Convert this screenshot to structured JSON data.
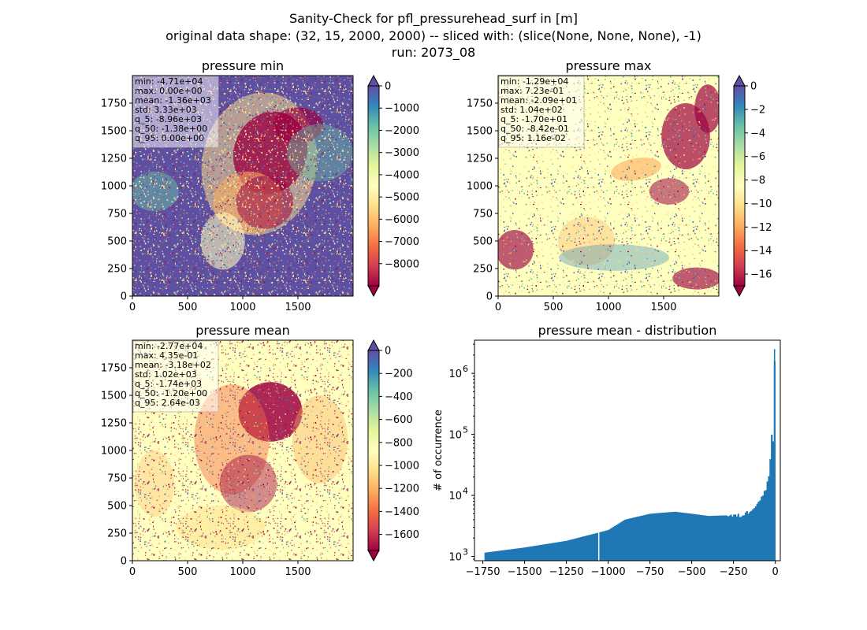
{
  "figure": {
    "title_lines": [
      "Sanity-Check for pfl_pressurehead_surf in [m]",
      "original data shape: (32, 15, 2000, 2000) -- sliced with: (slice(None, None, None), -1)",
      "run: 2073_08"
    ]
  },
  "colors": {
    "spectral": [
      "#9e0142",
      "#d53e4f",
      "#f46d43",
      "#fdae61",
      "#fee08b",
      "#ffffbf",
      "#e6f598",
      "#abdda4",
      "#66c2a5",
      "#3288bd",
      "#5e4fa2"
    ],
    "hist_bar": "#1f77b4",
    "map_background_min": "#5e4fa2",
    "map_background_max": "#ffffbf",
    "map_background_mean": "#ffffbf"
  },
  "chart_data": [
    {
      "type": "heatmap",
      "id": "min",
      "title": "pressure min",
      "xlim": [
        0,
        2000
      ],
      "ylim": [
        0,
        2000
      ],
      "xticks": [
        0,
        500,
        1000,
        1500
      ],
      "yticks": [
        0,
        250,
        500,
        750,
        1000,
        1250,
        1500,
        1750
      ],
      "colorbar": {
        "vmin": -9000,
        "vmax": 0,
        "ticks": [
          0,
          -1000,
          -2000,
          -3000,
          -4000,
          -5000,
          -6000,
          -7000,
          -8000
        ],
        "extend": "both"
      },
      "stats": [
        "min: -4.71e+04",
        "max: 0.00e+00",
        "mean: -1.36e+03",
        "std: 3.33e+03",
        "q_5: -8.96e+03",
        "q_50: -1.38e+00",
        "q_95: 0.00e+00"
      ]
    },
    {
      "type": "heatmap",
      "id": "max",
      "title": "pressure max",
      "xlim": [
        0,
        2000
      ],
      "ylim": [
        0,
        2000
      ],
      "xticks": [
        0,
        500,
        1000,
        1500
      ],
      "yticks": [
        0,
        250,
        500,
        750,
        1000,
        1250,
        1500,
        1750
      ],
      "colorbar": {
        "vmin": -17,
        "vmax": 0,
        "ticks": [
          0,
          -2,
          -4,
          -6,
          -8,
          -10,
          -12,
          -14,
          -16
        ],
        "extend": "both"
      },
      "stats": [
        "min: -1.29e+04",
        "max: 7.23e-01",
        "mean: -2.09e+01",
        "std: 1.04e+02",
        "q_5: -1.70e+01",
        "q_50: -8.42e-01",
        "q_95: 1.16e-02"
      ]
    },
    {
      "type": "heatmap",
      "id": "mean",
      "title": "pressure mean",
      "xlim": [
        0,
        2000
      ],
      "ylim": [
        0,
        2000
      ],
      "xticks": [
        0,
        500,
        1000,
        1500
      ],
      "yticks": [
        0,
        250,
        500,
        750,
        1000,
        1250,
        1500,
        1750
      ],
      "colorbar": {
        "vmin": -1740,
        "vmax": 0,
        "ticks": [
          0,
          -200,
          -400,
          -600,
          -800,
          -1000,
          -1200,
          -1400,
          -1600
        ],
        "extend": "both"
      },
      "stats": [
        "min: -2.77e+04",
        "max: 4.35e-01",
        "mean: -3.18e+02",
        "std: 1.02e+03",
        "q_5: -1.74e+03",
        "q_50: -1.20e+00",
        "q_95: 2.64e-03"
      ]
    },
    {
      "type": "bar",
      "id": "hist",
      "title": "pressure mean - distribution",
      "ylabel": "# of occurrence",
      "xlim": [
        -1800,
        30
      ],
      "ylim": [
        850,
        3500000
      ],
      "yscale": "log",
      "xticks": [
        -1750,
        -1500,
        -1250,
        -1000,
        -750,
        -500,
        -250,
        0
      ],
      "xticklabels": [
        "−1750",
        "−1500",
        "−1250",
        "−1000",
        "−750",
        "−500",
        "−250",
        "0"
      ],
      "yticks": [
        1000,
        10000,
        100000,
        1000000
      ],
      "yticklabels_base": [
        "10",
        "10",
        "10",
        "10"
      ],
      "yticklabels_exp": [
        "3",
        "4",
        "5",
        "6"
      ],
      "bins": {
        "start": -1740,
        "end": 0,
        "count": 200
      },
      "profile": {
        "x": [
          -1740,
          -1500,
          -1250,
          -1000,
          -900,
          -750,
          -600,
          -500,
          -400,
          -300,
          -250,
          -200,
          -150,
          -100,
          -80,
          -60,
          -50,
          -40,
          -30,
          -20,
          -15,
          -10,
          -7,
          -4,
          -2,
          0
        ],
        "y": [
          1150,
          1400,
          1800,
          2700,
          4000,
          5000,
          5400,
          5000,
          4600,
          4700,
          4600,
          4700,
          5600,
          8000,
          9500,
          12000,
          15000,
          20000,
          40000,
          120000,
          90000,
          60000,
          50000,
          2500000,
          100000,
          40000
        ]
      },
      "gap_bins": [
        -1060
      ]
    }
  ]
}
